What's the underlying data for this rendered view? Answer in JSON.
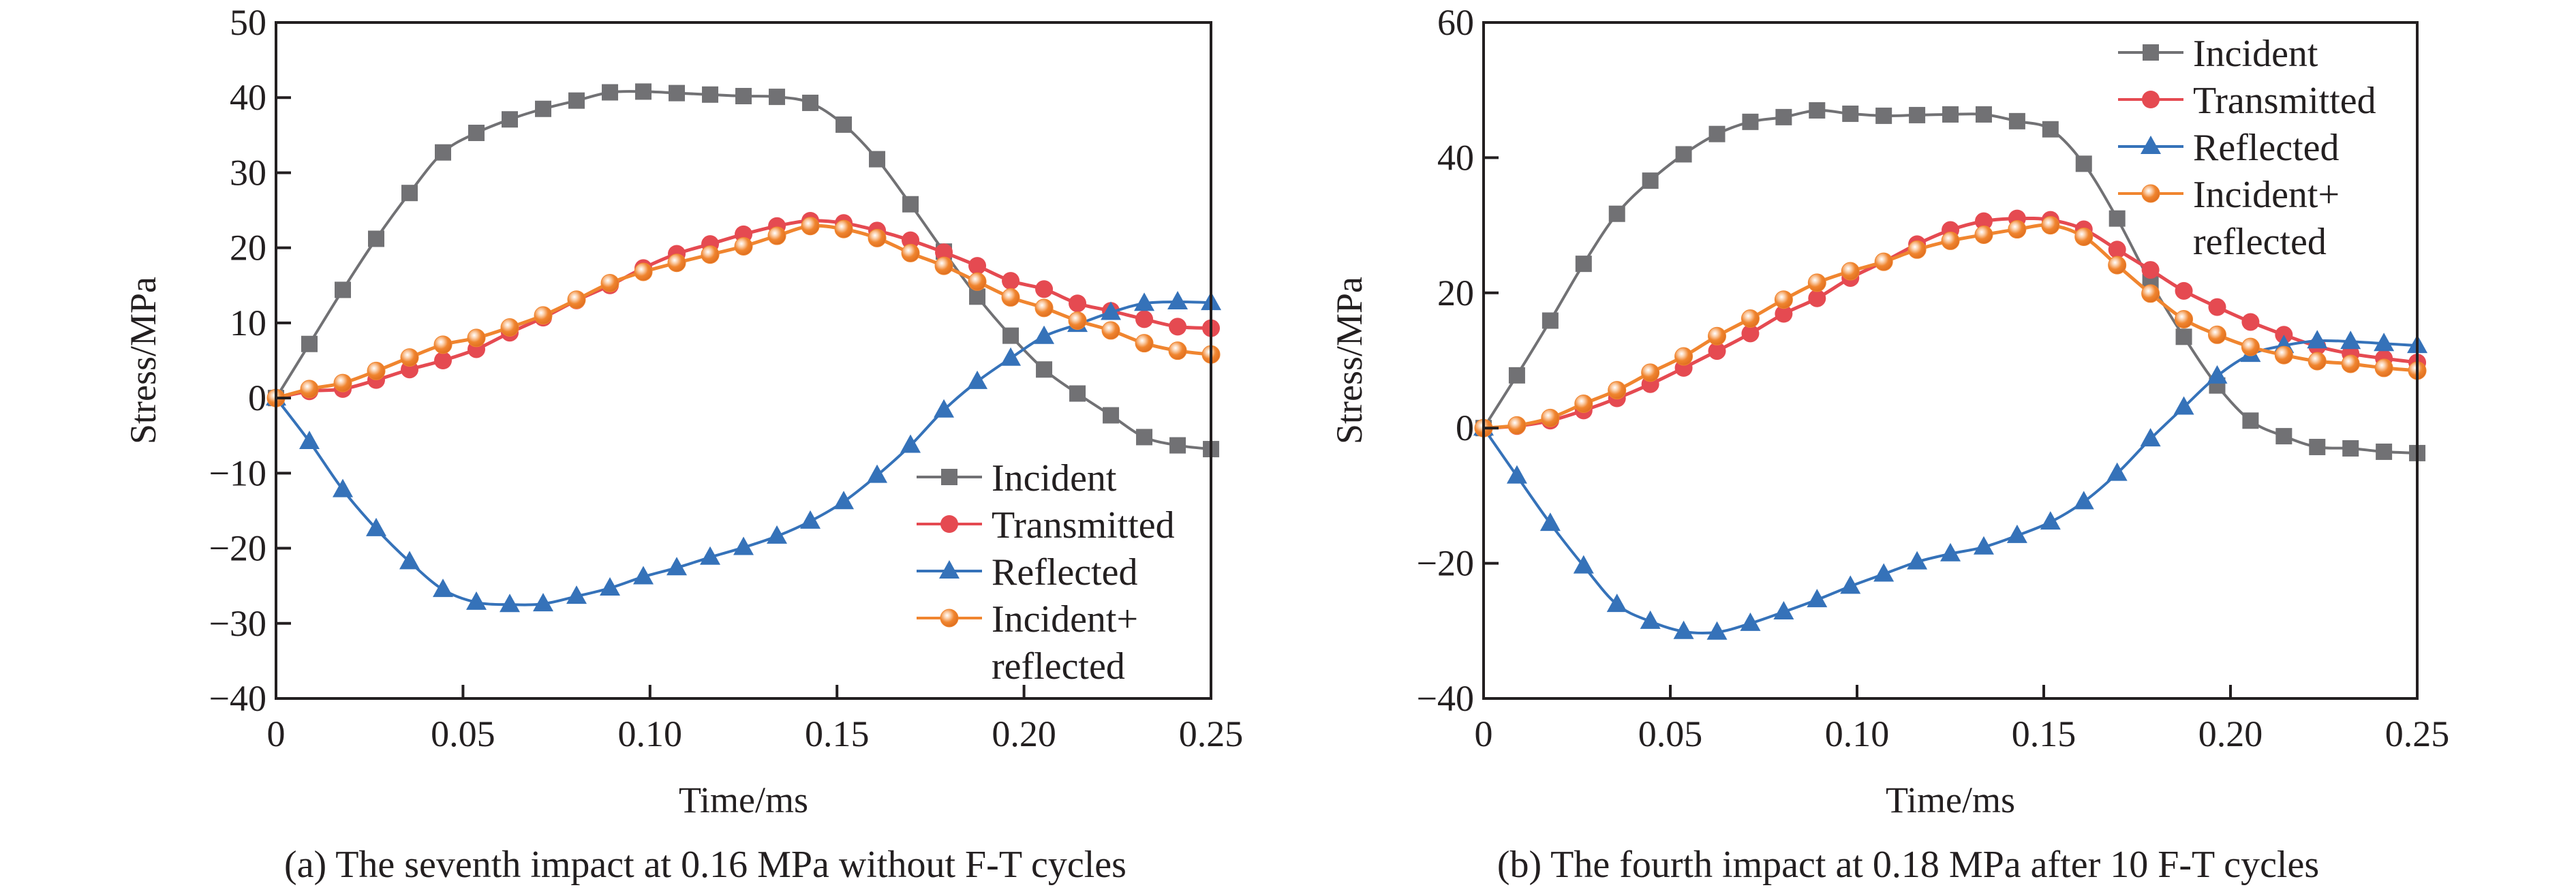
{
  "figure": {
    "captions": [
      "(a) The seventh impact at 0.16 MPa without F-T cycles",
      "(b) The fourth impact at 0.18 MPa after 10 F-T cycles"
    ]
  },
  "colors": {
    "incident": "#717174",
    "transmitted": "#e54a51",
    "reflected": "#3572b9",
    "incident_reflected": "#f0852f",
    "axis": "#231f20"
  },
  "chart_data": [
    {
      "type": "line",
      "panel": "a",
      "title": "(a) The seventh impact at 0.16 MPa without F-T cycles",
      "xlabel": "Time/ms",
      "ylabel": "Stress/MPa",
      "xlim": [
        0,
        0.25
      ],
      "ylim": [
        -40,
        50
      ],
      "xticks": [
        0,
        0.05,
        0.1,
        0.15,
        0.2,
        0.25
      ],
      "xtick_labels": [
        "0",
        "0.05",
        "0.10",
        "0.15",
        "0.20",
        "0.25"
      ],
      "yticks": [
        -40,
        -30,
        -20,
        -10,
        0,
        10,
        20,
        30,
        40,
        50
      ],
      "ytick_labels": [
        "−40",
        "−30",
        "−20",
        "−10",
        "0",
        "10",
        "20",
        "30",
        "40",
        "50"
      ],
      "grid": false,
      "legend_position": "bottom-right",
      "x_step": 0.008929,
      "series": [
        {
          "name": "Incident",
          "key": "incident",
          "marker": "square",
          "values": [
            0,
            7.2,
            14.4,
            21.2,
            27.3,
            32.7,
            35.3,
            37.1,
            38.5,
            39.6,
            40.7,
            40.8,
            40.6,
            40.4,
            40.2,
            40.1,
            39.3,
            36.4,
            31.8,
            25.8,
            19.5,
            13.5,
            8.3,
            3.8,
            0.6,
            -2.3,
            -5.2,
            -6.3,
            -6.8
          ]
        },
        {
          "name": "Transmitted",
          "key": "transmitted",
          "marker": "circle",
          "values": [
            0,
            0.9,
            1.2,
            2.4,
            3.8,
            5.0,
            6.5,
            8.7,
            10.7,
            13.0,
            15.0,
            17.3,
            19.2,
            20.5,
            21.8,
            22.9,
            23.6,
            23.3,
            22.3,
            21.0,
            19.4,
            17.6,
            15.6,
            14.5,
            12.6,
            11.6,
            10.5,
            9.5,
            9.3
          ]
        },
        {
          "name": "Reflected",
          "key": "reflected",
          "marker": "triangle",
          "values": [
            0,
            -5.8,
            -12.2,
            -17.4,
            -21.8,
            -25.5,
            -27.2,
            -27.5,
            -27.4,
            -26.4,
            -25.3,
            -23.8,
            -22.6,
            -21.2,
            -19.9,
            -18.4,
            -16.4,
            -13.8,
            -10.3,
            -6.3,
            -1.6,
            2.2,
            5.3,
            8.2,
            9.8,
            11.4,
            12.6,
            12.8,
            12.7
          ]
        },
        {
          "name": "Incident+\nreflected",
          "key": "incident_reflected",
          "marker": "sphere",
          "values": [
            0,
            1.2,
            2.0,
            3.6,
            5.4,
            7.1,
            8.0,
            9.4,
            11.0,
            13.1,
            15.3,
            16.8,
            18.0,
            19.1,
            20.2,
            21.6,
            22.9,
            22.5,
            21.3,
            19.3,
            17.6,
            15.5,
            13.4,
            12.0,
            10.3,
            9.0,
            7.3,
            6.3,
            5.8
          ]
        }
      ],
      "legend_labels": [
        "Incident",
        "Transmitted",
        "Reflected",
        "Incident+",
        "reflected"
      ]
    },
    {
      "type": "line",
      "panel": "b",
      "title": "(b) The fourth impact at 0.18 MPa after 10 F-T cycles",
      "xlabel": "Time/ms",
      "ylabel": "Stress/MPa",
      "xlim": [
        0,
        0.25
      ],
      "ylim": [
        -40,
        60
      ],
      "xticks": [
        0,
        0.05,
        0.1,
        0.15,
        0.2,
        0.25
      ],
      "xtick_labels": [
        "0",
        "0.05",
        "0.10",
        "0.15",
        "0.20",
        "0.25"
      ],
      "yticks": [
        -40,
        -20,
        0,
        20,
        40,
        60
      ],
      "ytick_labels": [
        "−40",
        "−20",
        "0",
        "20",
        "40",
        "60"
      ],
      "grid": false,
      "legend_position": "top-right",
      "x_step": 0.008929,
      "series": [
        {
          "name": "Incident",
          "key": "incident",
          "marker": "square",
          "values": [
            0,
            7.8,
            15.9,
            24.3,
            31.7,
            36.6,
            40.5,
            43.5,
            45.3,
            46.0,
            47.0,
            46.5,
            46.2,
            46.3,
            46.4,
            46.4,
            45.4,
            44.2,
            39.1,
            31.0,
            21.6,
            13.5,
            6.3,
            1.1,
            -1.2,
            -2.8,
            -3.0,
            -3.5,
            -3.7
          ]
        },
        {
          "name": "Transmitted",
          "key": "transmitted",
          "marker": "circle",
          "values": [
            0,
            0.3,
            1.1,
            2.6,
            4.4,
            6.5,
            8.9,
            11.4,
            14.0,
            16.9,
            19.2,
            22.2,
            24.6,
            27.2,
            29.3,
            30.6,
            31.0,
            30.8,
            29.4,
            26.4,
            23.4,
            20.3,
            17.9,
            15.7,
            13.8,
            12.1,
            11.0,
            10.3,
            9.7
          ]
        },
        {
          "name": "Reflected",
          "key": "reflected",
          "marker": "triangle",
          "values": [
            0,
            -7.1,
            -14.1,
            -20.4,
            -26.1,
            -28.6,
            -30.1,
            -30.2,
            -28.9,
            -27.2,
            -25.4,
            -23.4,
            -21.6,
            -19.8,
            -18.6,
            -17.6,
            -15.9,
            -13.9,
            -10.9,
            -6.7,
            -1.6,
            3.1,
            7.7,
            10.9,
            12.2,
            12.9,
            12.8,
            12.5,
            12.2
          ]
        },
        {
          "name": "Incident+\nreflected",
          "key": "incident_reflected",
          "marker": "sphere",
          "values": [
            0,
            0.4,
            1.5,
            3.6,
            5.6,
            8.2,
            10.6,
            13.6,
            16.2,
            19.0,
            21.5,
            23.2,
            24.6,
            26.4,
            27.7,
            28.6,
            29.4,
            30.0,
            28.3,
            24.1,
            19.9,
            16.1,
            13.8,
            12.0,
            10.8,
            9.9,
            9.5,
            8.9,
            8.5
          ]
        }
      ],
      "legend_labels": [
        "Incident",
        "Transmitted",
        "Reflected",
        "Incident+",
        "reflected"
      ]
    }
  ]
}
